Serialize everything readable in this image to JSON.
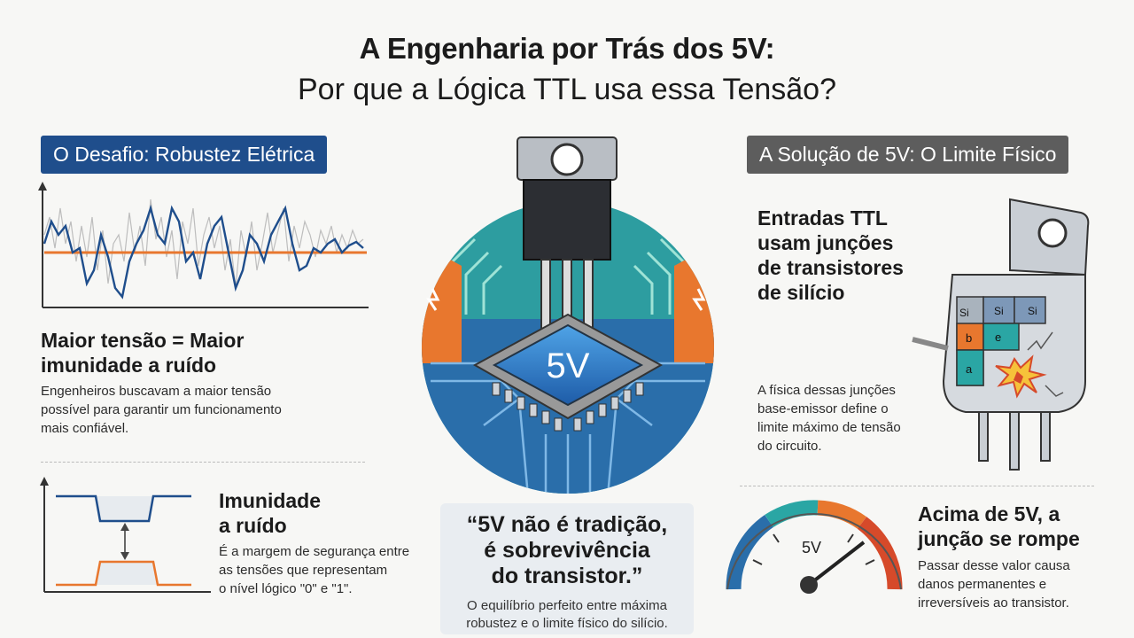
{
  "title": {
    "line1": "A Engenharia por Trás dos 5V:",
    "line2": "Por que a Lógica TTL usa essa Tensão?"
  },
  "left": {
    "badge": "O Desafio: Robustez Elétrica",
    "heading1": [
      "Maior tensão = Maior",
      "imunidade a ruído"
    ],
    "text1": [
      "Engenheiros buscavam a maior tensão",
      "possível para garantir um funcionamento",
      "mais confiável."
    ],
    "heading2": [
      "Imunidade",
      "a ruído"
    ],
    "text2": [
      "É a margem de segurança entre",
      "as tensões que representam",
      "o nível lógico \"0\" e \"1\"."
    ]
  },
  "center": {
    "chip_label": "5V",
    "quote": [
      "“5V não é tradição,",
      "é sobrevivência",
      "do transistor.”"
    ],
    "quote_sub": [
      "O equilíbrio perfeito entre máxima",
      "robustez e o limite físico do silício."
    ]
  },
  "right": {
    "badge": "A Solução de 5V: O Limite Físico",
    "heading1": [
      "Entradas TTL",
      "usam junções",
      "de transistores",
      "de silício"
    ],
    "text1": [
      "A física dessas junções",
      "base-emissor define o",
      "limite máximo de tensão",
      "do circuito."
    ],
    "heading2": [
      "Acima de 5V, a",
      "junção se rompe"
    ],
    "text2": [
      "Passar desse valor causa",
      "danos permanentes e",
      "irreversíveis ao transistor."
    ],
    "gauge_label": "5V",
    "layer_labels": {
      "si1": "Si",
      "si2": "Si",
      "si3": "Si",
      "b": "b",
      "e": "e",
      "a": "a"
    }
  },
  "colors": {
    "blue": "#1f4e8c",
    "orange": "#e8772e",
    "teal": "#2aa6a4",
    "grey": "#5d5d5d",
    "red": "#d64a2a"
  }
}
